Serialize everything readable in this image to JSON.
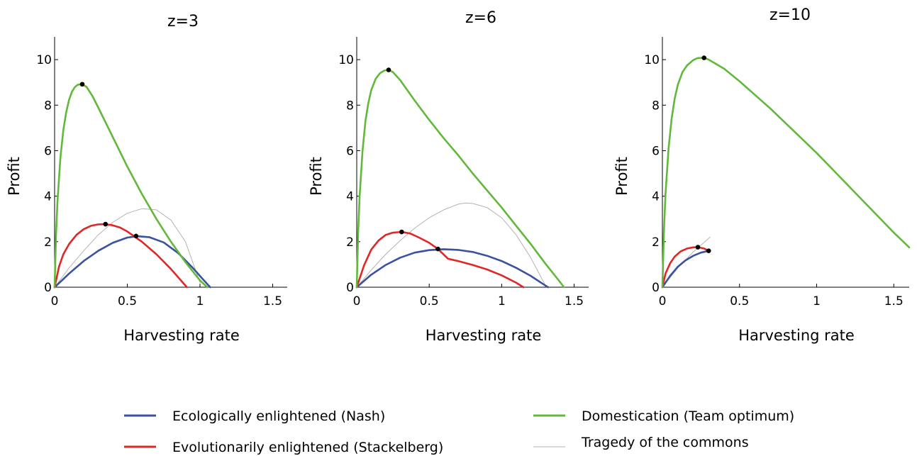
{
  "chart_data": [
    {
      "type": "line",
      "title": "z=3",
      "xlabel": "Harvesting rate",
      "ylabel": "Profit",
      "xlim": [
        0,
        1.6
      ],
      "ylim": [
        0,
        11
      ],
      "xticks": [
        "0",
        "0.5",
        "1",
        "1.5"
      ],
      "yticks": [
        "0",
        "2",
        "4",
        "6",
        "8",
        "10"
      ],
      "grid": false,
      "series": [
        {
          "name": "Tragedy of the commons",
          "color": "#b3b3b3",
          "x": [
            0,
            0.1,
            0.2,
            0.3,
            0.4,
            0.5,
            0.6,
            0.7,
            0.8,
            0.9,
            1.0
          ],
          "y": [
            0,
            0.85,
            1.6,
            2.3,
            2.85,
            3.25,
            3.45,
            3.4,
            2.95,
            2.0,
            0.2
          ]
        },
        {
          "name": "Ecologically enlightened (Nash)",
          "color": "#3a52a0",
          "x": [
            0,
            0.05,
            0.1,
            0.2,
            0.3,
            0.4,
            0.5,
            0.57,
            0.65,
            0.75,
            0.85,
            0.95,
            1.02,
            1.07
          ],
          "y": [
            0,
            0.3,
            0.6,
            1.15,
            1.6,
            1.95,
            2.18,
            2.24,
            2.2,
            1.97,
            1.5,
            0.85,
            0.35,
            0
          ]
        },
        {
          "name": "Evolutionarily enlightened (Stackelberg)",
          "color": "#e02727",
          "x": [
            0,
            0.03,
            0.06,
            0.1,
            0.15,
            0.2,
            0.25,
            0.3,
            0.35,
            0.4,
            0.45,
            0.5,
            0.6,
            0.7,
            0.8,
            0.91
          ],
          "y": [
            0,
            0.9,
            1.45,
            1.9,
            2.3,
            2.55,
            2.7,
            2.76,
            2.77,
            2.72,
            2.62,
            2.45,
            2.0,
            1.45,
            0.8,
            0
          ]
        },
        {
          "name": "Domestication (Team optimum)",
          "color": "#62b83a",
          "x": [
            0,
            0.01,
            0.02,
            0.04,
            0.06,
            0.08,
            0.1,
            0.12,
            0.14,
            0.16,
            0.19,
            0.22,
            0.26,
            0.3,
            0.4,
            0.5,
            0.6,
            0.7,
            0.8,
            0.9,
            1.0,
            1.05
          ],
          "y": [
            0,
            2.3,
            3.8,
            5.7,
            6.9,
            7.7,
            8.25,
            8.6,
            8.8,
            8.9,
            8.92,
            8.8,
            8.4,
            7.9,
            6.6,
            5.3,
            4.1,
            3.0,
            2.0,
            1.1,
            0.3,
            0
          ]
        }
      ],
      "markers": {
        "x": [
          0.19,
          0.35,
          0.56
        ],
        "y": [
          8.92,
          2.77,
          2.25
        ]
      }
    },
    {
      "type": "line",
      "title": "z=6",
      "xlabel": "Harvesting rate",
      "ylabel": "Profit",
      "xlim": [
        0,
        1.6
      ],
      "ylim": [
        0,
        11
      ],
      "xticks": [
        "0",
        "0.5",
        "1",
        "1.5"
      ],
      "yticks": [
        "0",
        "2",
        "4",
        "6",
        "8",
        "10"
      ],
      "grid": false,
      "series": [
        {
          "name": "Tragedy of the commons",
          "color": "#b3b3b3",
          "x": [
            0,
            0.1,
            0.2,
            0.3,
            0.4,
            0.5,
            0.6,
            0.7,
            0.75,
            0.8,
            0.9,
            1.0,
            1.1,
            1.2,
            1.3
          ],
          "y": [
            0,
            0.75,
            1.45,
            2.05,
            2.6,
            3.05,
            3.4,
            3.65,
            3.7,
            3.68,
            3.5,
            3.05,
            2.3,
            1.3,
            0.1
          ]
        },
        {
          "name": "Ecologically enlightened (Nash)",
          "color": "#3a52a0",
          "x": [
            0,
            0.1,
            0.2,
            0.3,
            0.4,
            0.5,
            0.6,
            0.7,
            0.8,
            0.9,
            1.0,
            1.1,
            1.2,
            1.3,
            1.32
          ],
          "y": [
            0,
            0.55,
            0.98,
            1.3,
            1.52,
            1.63,
            1.67,
            1.64,
            1.55,
            1.38,
            1.15,
            0.85,
            0.5,
            0.08,
            0
          ]
        },
        {
          "name": "Evolutionarily enlightened (Stackelberg)",
          "color": "#e02727",
          "x": [
            0,
            0.05,
            0.1,
            0.15,
            0.2,
            0.25,
            0.31,
            0.37,
            0.43,
            0.5,
            0.56,
            0.63,
            0.7,
            0.8,
            0.9,
            1.0,
            1.1,
            1.15
          ],
          "y": [
            0,
            0.95,
            1.65,
            2.05,
            2.3,
            2.4,
            2.43,
            2.36,
            2.18,
            1.95,
            1.68,
            1.25,
            1.15,
            0.98,
            0.78,
            0.52,
            0.2,
            0
          ]
        },
        {
          "name": "Domestication (Team optimum)",
          "color": "#62b83a",
          "x": [
            0,
            0.01,
            0.02,
            0.04,
            0.06,
            0.08,
            0.1,
            0.13,
            0.16,
            0.19,
            0.22,
            0.25,
            0.3,
            0.4,
            0.5,
            0.6,
            0.7,
            0.8,
            0.9,
            1.0,
            1.1,
            1.2,
            1.3,
            1.4,
            1.43
          ],
          "y": [
            0,
            2.4,
            4.0,
            6.0,
            7.3,
            8.1,
            8.65,
            9.15,
            9.4,
            9.52,
            9.55,
            9.45,
            9.1,
            8.2,
            7.35,
            6.55,
            5.8,
            5.0,
            4.25,
            3.5,
            2.7,
            1.9,
            1.05,
            0.25,
            0
          ]
        }
      ],
      "markers": {
        "x": [
          0.22,
          0.31,
          0.56
        ],
        "y": [
          9.55,
          2.43,
          1.68
        ]
      }
    },
    {
      "type": "line",
      "title": "z=10",
      "xlabel": "Harvesting rate",
      "ylabel": "Profit",
      "xlim": [
        0,
        1.6
      ],
      "ylim": [
        0,
        11
      ],
      "xticks": [
        "0",
        "0.5",
        "1",
        "1.5"
      ],
      "yticks": [
        "0",
        "2",
        "4",
        "6",
        "8",
        "10"
      ],
      "grid": false,
      "series": [
        {
          "name": "Tragedy of the commons",
          "color": "#b3b3b3",
          "x": [
            0,
            0.1,
            0.2,
            0.3,
            0.31
          ],
          "y": [
            0,
            0.85,
            1.55,
            2.15,
            2.2
          ]
        },
        {
          "name": "Ecologically enlightened (Nash)",
          "color": "#3a52a0",
          "x": [
            0,
            0.05,
            0.1,
            0.15,
            0.2,
            0.25,
            0.3
          ],
          "y": [
            0,
            0.5,
            0.9,
            1.18,
            1.38,
            1.52,
            1.6
          ]
        },
        {
          "name": "Evolutionarily enlightened (Stackelberg)",
          "color": "#e02727",
          "x": [
            0,
            0.02,
            0.05,
            0.08,
            0.12,
            0.16,
            0.2,
            0.23,
            0.27,
            0.3
          ],
          "y": [
            0,
            0.6,
            1.05,
            1.35,
            1.58,
            1.7,
            1.75,
            1.76,
            1.7,
            1.6
          ]
        },
        {
          "name": "Domestication (Team optimum)",
          "color": "#62b83a",
          "x": [
            0,
            0.01,
            0.02,
            0.04,
            0.06,
            0.08,
            0.1,
            0.13,
            0.16,
            0.2,
            0.23,
            0.27,
            0.3,
            0.4,
            0.5,
            0.6,
            0.7,
            0.8,
            0.9,
            1.0,
            1.1,
            1.2,
            1.3,
            1.4,
            1.5,
            1.6
          ],
          "y": [
            0,
            2.5,
            4.1,
            6.1,
            7.4,
            8.3,
            8.9,
            9.45,
            9.75,
            9.98,
            10.07,
            10.08,
            10.0,
            9.6,
            9.05,
            8.45,
            7.85,
            7.2,
            6.55,
            5.9,
            5.2,
            4.5,
            3.8,
            3.1,
            2.4,
            1.75
          ]
        }
      ],
      "markers": {
        "x": [
          0.27,
          0.23,
          0.3
        ],
        "y": [
          10.08,
          1.76,
          1.6
        ]
      }
    }
  ],
  "legend": [
    {
      "label": "Ecologically enlightened (Nash)",
      "color": "#3a52a0"
    },
    {
      "label": "Evolutionarily enlightened (Stackelberg)",
      "color": "#e02727"
    },
    {
      "label": "Domestication (Team optimum)",
      "color": "#62b83a"
    },
    {
      "label": "Tragedy of the commons",
      "color": "#b3b3b3"
    }
  ]
}
